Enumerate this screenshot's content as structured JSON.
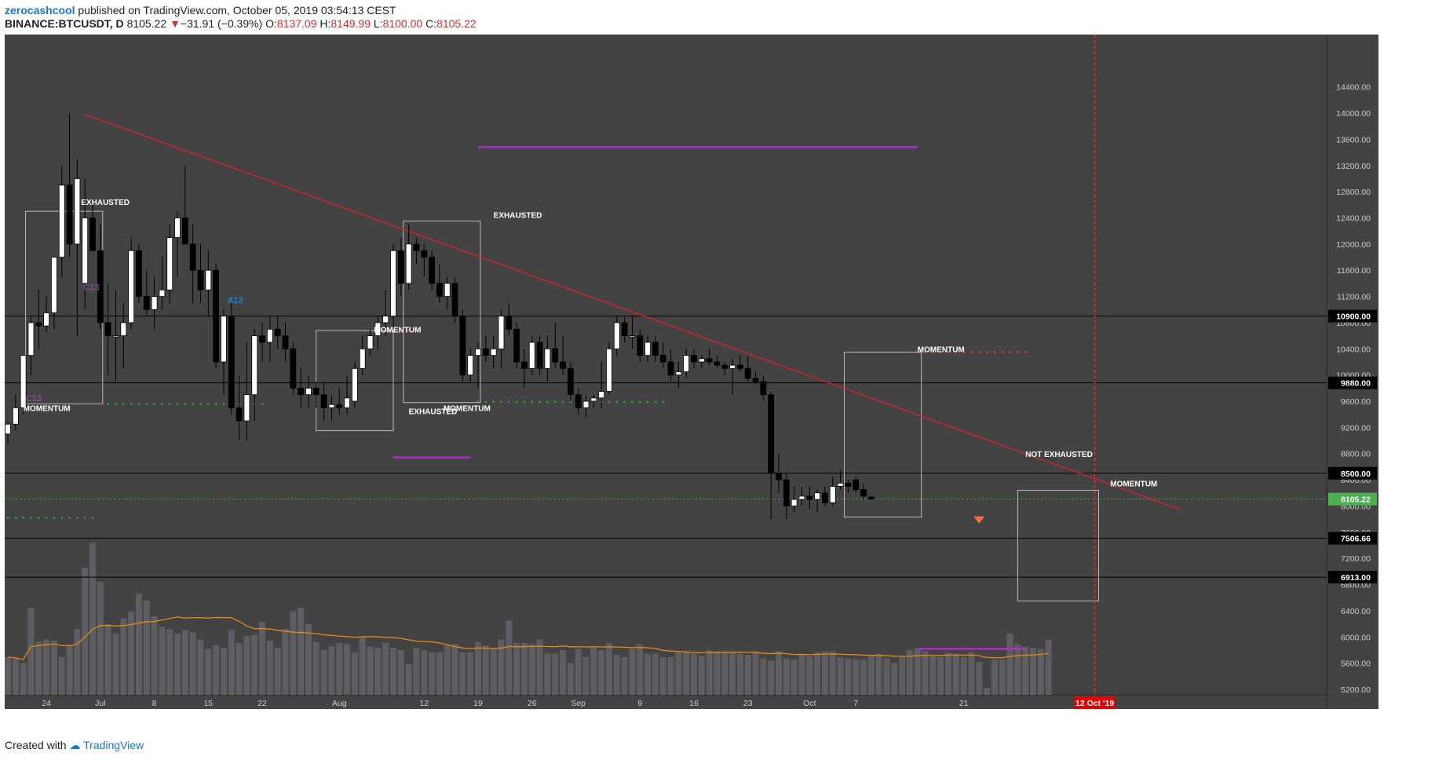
{
  "header": {
    "author": "zerocashcool",
    "published_text": "published on TradingView.com, October 05, 2019 03:54:13 CEST",
    "symbol": "BINANCE:BTCUSDT, D",
    "last": "8105.22",
    "change_arrow": "▼",
    "change": "−31.91 (−0.39%)",
    "o_label": "O:",
    "o": "8137.09",
    "h_label": "H:",
    "h": "8149.99",
    "l_label": "L:",
    "l": "8100.00",
    "c_label": "C:",
    "c": "8105.22"
  },
  "footer": {
    "created_with": "Created with",
    "brand": "TradingView"
  },
  "colors": {
    "background": "#434343",
    "up": "#ffffff",
    "down": "#000000",
    "trendline": "#c62828",
    "magenta": "#ab2fc4",
    "volume": "#5e5e62",
    "volume_ma": "#e08a1a",
    "current_price": "#4caf50",
    "deadline": "#e53935"
  },
  "chart_data": {
    "type": "candlestick",
    "symbol": "BINANCE:BTCUSDT",
    "interval": "D",
    "y_range": [
      4900,
      15200
    ],
    "y_ticks": [
      5200,
      5600,
      6000,
      6400,
      6800,
      7200,
      7600,
      8000,
      8400,
      8800,
      9200,
      9600,
      10000,
      10400,
      10800,
      11200,
      11600,
      12000,
      12400,
      12800,
      13200,
      13600,
      14000,
      14400
    ],
    "y_tick_labels": [
      "5200.00",
      "5600.00",
      "6000.00",
      "6400.00",
      "6800.00",
      "7200.00",
      "7600.00",
      "8000.00",
      "8400.00",
      "8800.00",
      "9200.00",
      "9600.00",
      "10000.00",
      "10400.00",
      "10800.00",
      "11200.00",
      "11600.00",
      "12000.00",
      "12400.00",
      "12800.00",
      "13200.00",
      "13600.00",
      "14000.00",
      "14400.00"
    ],
    "x_labels": [
      {
        "day": 5,
        "text": "24"
      },
      {
        "day": 12,
        "text": "Jul"
      },
      {
        "day": 19,
        "text": "8"
      },
      {
        "day": 26,
        "text": "15"
      },
      {
        "day": 33,
        "text": "22"
      },
      {
        "day": 43,
        "text": "Aug"
      },
      {
        "day": 54,
        "text": "12"
      },
      {
        "day": 61,
        "text": "19"
      },
      {
        "day": 68,
        "text": "26"
      },
      {
        "day": 74,
        "text": "Sep"
      },
      {
        "day": 82,
        "text": "9"
      },
      {
        "day": 89,
        "text": "16"
      },
      {
        "day": 96,
        "text": "23"
      },
      {
        "day": 104,
        "text": "Oct"
      },
      {
        "day": 110,
        "text": "7"
      },
      {
        "day": 124,
        "text": "21"
      }
    ],
    "candles": [
      {
        "o": 9100,
        "h": 9300,
        "l": 8950,
        "c": 9250
      },
      {
        "o": 9250,
        "h": 9700,
        "l": 9150,
        "c": 9500
      },
      {
        "o": 9500,
        "h": 10200,
        "l": 9400,
        "c": 10300
      },
      {
        "o": 10300,
        "h": 10900,
        "l": 10000,
        "c": 10800
      },
      {
        "o": 10800,
        "h": 11300,
        "l": 10400,
        "c": 10750
      },
      {
        "o": 10750,
        "h": 11200,
        "l": 10650,
        "c": 10950
      },
      {
        "o": 10950,
        "h": 11700,
        "l": 10700,
        "c": 11800
      },
      {
        "o": 11800,
        "h": 13200,
        "l": 11500,
        "c": 12900
      },
      {
        "o": 12900,
        "h": 14000,
        "l": 11800,
        "c": 12000
      },
      {
        "o": 12000,
        "h": 13300,
        "l": 10600,
        "c": 13000
      },
      {
        "o": 11400,
        "h": 13000,
        "l": 11000,
        "c": 12400
      },
      {
        "o": 12400,
        "h": 12700,
        "l": 11900,
        "c": 11900
      },
      {
        "o": 11900,
        "h": 12300,
        "l": 10700,
        "c": 10800
      },
      {
        "o": 10800,
        "h": 11400,
        "l": 10000,
        "c": 10600
      },
      {
        "o": 10600,
        "h": 11300,
        "l": 9900,
        "c": 10600
      },
      {
        "o": 10600,
        "h": 11100,
        "l": 10100,
        "c": 10800
      },
      {
        "o": 10800,
        "h": 12100,
        "l": 10700,
        "c": 11900
      },
      {
        "o": 11900,
        "h": 12000,
        "l": 11100,
        "c": 11200
      },
      {
        "o": 11200,
        "h": 11600,
        "l": 10900,
        "c": 11000
      },
      {
        "o": 11000,
        "h": 11500,
        "l": 10700,
        "c": 11200
      },
      {
        "o": 11200,
        "h": 11800,
        "l": 11000,
        "c": 11300
      },
      {
        "o": 11300,
        "h": 12300,
        "l": 11100,
        "c": 12100
      },
      {
        "o": 12100,
        "h": 12500,
        "l": 11500,
        "c": 12400
      },
      {
        "o": 12400,
        "h": 13200,
        "l": 12000,
        "c": 12000
      },
      {
        "o": 12000,
        "h": 12300,
        "l": 11100,
        "c": 11600
      },
      {
        "o": 11600,
        "h": 12000,
        "l": 11100,
        "c": 11300
      },
      {
        "o": 11300,
        "h": 11900,
        "l": 10900,
        "c": 11600
      },
      {
        "o": 11600,
        "h": 11700,
        "l": 10100,
        "c": 10200
      },
      {
        "o": 10200,
        "h": 11000,
        "l": 9700,
        "c": 10900
      },
      {
        "o": 10900,
        "h": 11100,
        "l": 9400,
        "c": 9500
      },
      {
        "o": 9500,
        "h": 10000,
        "l": 9000,
        "c": 9300
      },
      {
        "o": 9300,
        "h": 10500,
        "l": 9000,
        "c": 9700
      },
      {
        "o": 9700,
        "h": 10700,
        "l": 9300,
        "c": 10600
      },
      {
        "o": 10600,
        "h": 10800,
        "l": 10200,
        "c": 10500
      },
      {
        "o": 10500,
        "h": 10900,
        "l": 10200,
        "c": 10700
      },
      {
        "o": 10700,
        "h": 10900,
        "l": 10400,
        "c": 10600
      },
      {
        "o": 10600,
        "h": 10800,
        "l": 10200,
        "c": 10400
      },
      {
        "o": 10400,
        "h": 10500,
        "l": 9700,
        "c": 9800
      },
      {
        "o": 9800,
        "h": 10100,
        "l": 9500,
        "c": 9700
      },
      {
        "o": 9700,
        "h": 10000,
        "l": 9500,
        "c": 9800
      },
      {
        "o": 9800,
        "h": 9900,
        "l": 9500,
        "c": 9700
      },
      {
        "o": 9700,
        "h": 9900,
        "l": 9300,
        "c": 9500
      },
      {
        "o": 9500,
        "h": 9700,
        "l": 9300,
        "c": 9550
      },
      {
        "o": 9550,
        "h": 9800,
        "l": 9400,
        "c": 9500
      },
      {
        "o": 9500,
        "h": 10000,
        "l": 9400,
        "c": 9650
      },
      {
        "o": 9600,
        "h": 10200,
        "l": 9500,
        "c": 10100
      },
      {
        "o": 10100,
        "h": 10600,
        "l": 10000,
        "c": 10400
      },
      {
        "o": 10400,
        "h": 10700,
        "l": 10300,
        "c": 10600
      },
      {
        "o": 10600,
        "h": 10900,
        "l": 10400,
        "c": 10800
      },
      {
        "o": 10800,
        "h": 11300,
        "l": 10600,
        "c": 10900
      },
      {
        "o": 10900,
        "h": 12000,
        "l": 10700,
        "c": 11900
      },
      {
        "o": 11900,
        "h": 12100,
        "l": 11200,
        "c": 11400
      },
      {
        "o": 11400,
        "h": 12300,
        "l": 11300,
        "c": 12000
      },
      {
        "o": 12000,
        "h": 12100,
        "l": 11700,
        "c": 11900
      },
      {
        "o": 11900,
        "h": 12000,
        "l": 11500,
        "c": 11800
      },
      {
        "o": 11800,
        "h": 11900,
        "l": 11300,
        "c": 11400
      },
      {
        "o": 11400,
        "h": 11700,
        "l": 11100,
        "c": 11200
      },
      {
        "o": 11200,
        "h": 11500,
        "l": 11000,
        "c": 11400
      },
      {
        "o": 11400,
        "h": 11500,
        "l": 10800,
        "c": 10900
      },
      {
        "o": 10900,
        "h": 11000,
        "l": 9900,
        "c": 10000
      },
      {
        "o": 10000,
        "h": 10400,
        "l": 9900,
        "c": 10300
      },
      {
        "o": 10300,
        "h": 10500,
        "l": 9800,
        "c": 10400
      },
      {
        "o": 10400,
        "h": 10600,
        "l": 10200,
        "c": 10300
      },
      {
        "o": 10300,
        "h": 10600,
        "l": 10100,
        "c": 10400
      },
      {
        "o": 10400,
        "h": 11000,
        "l": 10100,
        "c": 10900
      },
      {
        "o": 10900,
        "h": 11100,
        "l": 10600,
        "c": 10700
      },
      {
        "o": 10700,
        "h": 10800,
        "l": 10100,
        "c": 10200
      },
      {
        "o": 10200,
        "h": 10400,
        "l": 9800,
        "c": 10100
      },
      {
        "o": 10100,
        "h": 10600,
        "l": 10000,
        "c": 10500
      },
      {
        "o": 10500,
        "h": 10600,
        "l": 10000,
        "c": 10100
      },
      {
        "o": 10100,
        "h": 10600,
        "l": 9900,
        "c": 10400
      },
      {
        "o": 10400,
        "h": 10800,
        "l": 10100,
        "c": 10200
      },
      {
        "o": 10200,
        "h": 10600,
        "l": 10000,
        "c": 10100
      },
      {
        "o": 10100,
        "h": 10200,
        "l": 9600,
        "c": 9700
      },
      {
        "o": 9700,
        "h": 9800,
        "l": 9400,
        "c": 9500
      },
      {
        "o": 9500,
        "h": 9700,
        "l": 9350,
        "c": 9600
      },
      {
        "o": 9600,
        "h": 9700,
        "l": 9500,
        "c": 9650
      },
      {
        "o": 9650,
        "h": 10200,
        "l": 9500,
        "c": 9750
      },
      {
        "o": 9750,
        "h": 10500,
        "l": 9700,
        "c": 10400
      },
      {
        "o": 10400,
        "h": 10900,
        "l": 10300,
        "c": 10800
      },
      {
        "o": 10800,
        "h": 10900,
        "l": 10500,
        "c": 10600
      },
      {
        "o": 10600,
        "h": 10900,
        "l": 10400,
        "c": 10600
      },
      {
        "o": 10600,
        "h": 10700,
        "l": 10200,
        "c": 10300
      },
      {
        "o": 10300,
        "h": 10600,
        "l": 10200,
        "c": 10500
      },
      {
        "o": 10500,
        "h": 10600,
        "l": 10200,
        "c": 10300
      },
      {
        "o": 10300,
        "h": 10500,
        "l": 10100,
        "c": 10200
      },
      {
        "o": 10200,
        "h": 10400,
        "l": 9900,
        "c": 10000
      },
      {
        "o": 10000,
        "h": 10200,
        "l": 9800,
        "c": 10050
      },
      {
        "o": 10050,
        "h": 10400,
        "l": 9950,
        "c": 10300
      },
      {
        "o": 10300,
        "h": 10400,
        "l": 10100,
        "c": 10200
      },
      {
        "o": 10200,
        "h": 10300,
        "l": 10100,
        "c": 10250
      },
      {
        "o": 10250,
        "h": 10400,
        "l": 10150,
        "c": 10200
      },
      {
        "o": 10200,
        "h": 10300,
        "l": 10100,
        "c": 10150
      },
      {
        "o": 10150,
        "h": 10200,
        "l": 10000,
        "c": 10100
      },
      {
        "o": 10100,
        "h": 10250,
        "l": 9700,
        "c": 10150
      },
      {
        "o": 10150,
        "h": 10300,
        "l": 10050,
        "c": 10100
      },
      {
        "o": 10100,
        "h": 10300,
        "l": 9900,
        "c": 9950
      },
      {
        "o": 9950,
        "h": 10050,
        "l": 9850,
        "c": 9900
      },
      {
        "o": 9900,
        "h": 10000,
        "l": 9600,
        "c": 9700
      },
      {
        "o": 9700,
        "h": 9750,
        "l": 7800,
        "c": 8500
      },
      {
        "o": 8500,
        "h": 8800,
        "l": 8200,
        "c": 8400
      },
      {
        "o": 8400,
        "h": 8500,
        "l": 7800,
        "c": 8000
      },
      {
        "o": 8000,
        "h": 8300,
        "l": 7900,
        "c": 8100
      },
      {
        "o": 8100,
        "h": 8300,
        "l": 8000,
        "c": 8150
      },
      {
        "o": 8150,
        "h": 8300,
        "l": 7950,
        "c": 8100
      },
      {
        "o": 8100,
        "h": 8250,
        "l": 7900,
        "c": 8200
      },
      {
        "o": 8200,
        "h": 8300,
        "l": 8000,
        "c": 8050
      },
      {
        "o": 8050,
        "h": 8450,
        "l": 8000,
        "c": 8300
      },
      {
        "o": 8300,
        "h": 8550,
        "l": 8250,
        "c": 8350
      },
      {
        "o": 8350,
        "h": 8400,
        "l": 8200,
        "c": 8300
      },
      {
        "o": 8400,
        "h": 8450,
        "l": 8200,
        "c": 8250
      },
      {
        "o": 8250,
        "h": 8350,
        "l": 8100,
        "c": 8150
      },
      {
        "o": 8137.09,
        "h": 8149.99,
        "l": 8100,
        "c": 8105.22
      }
    ],
    "volume": [
      32,
      31,
      27,
      74,
      45,
      47,
      46,
      32,
      42,
      56,
      108,
      129,
      96,
      60,
      52,
      65,
      71,
      86,
      80,
      67,
      58,
      56,
      52,
      55,
      53,
      47,
      39,
      42,
      40,
      55,
      44,
      50,
      51,
      62,
      46,
      40,
      56,
      71,
      74,
      60,
      45,
      38,
      41,
      44,
      43,
      36,
      49,
      41,
      40,
      44,
      40,
      38,
      26,
      40,
      38,
      36,
      36,
      42,
      43,
      36,
      36,
      45,
      42,
      39,
      47,
      63,
      44,
      44,
      43,
      47,
      35,
      35,
      38,
      27,
      39,
      32,
      40,
      38,
      44,
      34,
      32,
      39,
      43,
      35,
      35,
      32,
      32,
      36,
      36,
      35,
      33,
      38,
      37,
      36,
      36,
      35,
      34,
      37,
      31,
      29,
      37,
      31,
      30,
      35,
      33,
      36,
      37,
      37,
      32,
      31,
      30,
      30,
      33,
      35,
      31,
      27,
      32,
      38,
      40,
      37,
      33,
      32,
      36,
      35,
      32,
      36,
      28,
      6,
      30,
      30,
      52,
      43,
      41,
      40,
      39,
      47
    ],
    "horizontal_levels": [
      {
        "price": 10900,
        "label": "10900.00"
      },
      {
        "price": 9880,
        "label": "9880.00"
      },
      {
        "price": 8500,
        "label": "8500.00"
      },
      {
        "price": 7506.66,
        "label": "7506.66"
      },
      {
        "price": 6913,
        "label": "6913.00"
      }
    ],
    "current_price": {
      "price": 8105.22,
      "label": "8105.22"
    },
    "trendline": {
      "from": {
        "day": 10,
        "price": 13980
      },
      "to": {
        "day": 130,
        "price": 8750
      }
    },
    "deadline": {
      "day": 133,
      "label": "12 Oct '19"
    },
    "annotations": [
      {
        "text": "EXHAUSTED",
        "day": 9.5,
        "price": 12600
      },
      {
        "text": "MOMENTUM",
        "day": 2,
        "price": 9450
      },
      {
        "text": "C13",
        "day": 2.3,
        "price": 9600
      },
      {
        "text": "C13",
        "day": 9.8,
        "price": 11300
      },
      {
        "text": "A13",
        "day": 28.5,
        "price": 11100
      },
      {
        "text": "MOMENTUM",
        "day": 47.5,
        "price": 10650
      },
      {
        "text": "EXHAUSTED",
        "day": 52,
        "price": 9400
      },
      {
        "text": "EXHAUSTED",
        "day": 63,
        "price": 12400
      },
      {
        "text": "MOMENTUM",
        "day": 56.5,
        "price": 9450
      },
      {
        "text": "MOMENTUM",
        "day": 118,
        "price": 10350
      },
      {
        "text": "NOT EXHAUSTED",
        "day": 132,
        "price": 8750
      },
      {
        "text": "MOMENTUM",
        "day": 143,
        "price": 8300
      }
    ]
  }
}
